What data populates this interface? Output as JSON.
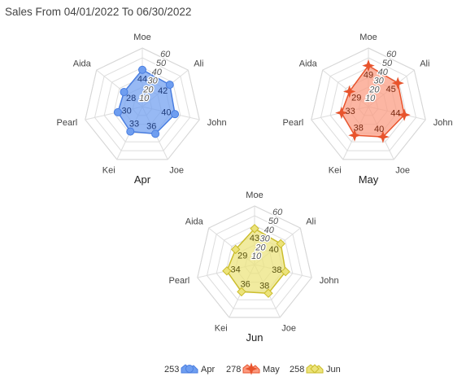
{
  "title": "Sales From 04/01/2022 To 06/30/2022",
  "chart_data": {
    "type": "radar",
    "axes": [
      "Moe",
      "Ali",
      "John",
      "Joe",
      "Kei",
      "Pearl",
      "Aida"
    ],
    "r_ticks": [
      "10",
      "20",
      "30",
      "40",
      "50",
      "60"
    ],
    "r_max": 70,
    "charts": [
      {
        "name": "Apr",
        "total": "253",
        "values": [
          44,
          42,
          40,
          36,
          33,
          30,
          28
        ],
        "fill": "#6f9ef0",
        "stroke": "#4a7ee0",
        "marker": "circle",
        "label_color": "#1f3b7a"
      },
      {
        "name": "May",
        "total": "278",
        "values": [
          49,
          45,
          44,
          40,
          38,
          33,
          29
        ],
        "fill": "#fb9a7f",
        "stroke": "#e8542d",
        "marker": "star",
        "label_color": "#7a2a12"
      },
      {
        "name": "Jun",
        "total": "258",
        "values": [
          43,
          40,
          38,
          38,
          36,
          34,
          29
        ],
        "fill": "#ece37a",
        "stroke": "#cbbd2c",
        "marker": "diamond",
        "label_color": "#5a5410"
      }
    ],
    "legend_position": "bottom",
    "grid": true
  }
}
